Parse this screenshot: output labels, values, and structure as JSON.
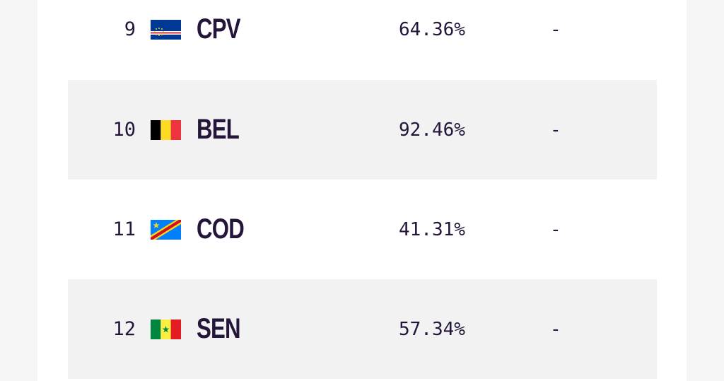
{
  "rows": [
    {
      "rank": "9",
      "code": "CPV",
      "flag_icon": "cape-verde-flag-icon",
      "percentage": "64.36%",
      "change": "-"
    },
    {
      "rank": "10",
      "code": "BEL",
      "flag_icon": "belgium-flag-icon",
      "percentage": "92.46%",
      "change": "-"
    },
    {
      "rank": "11",
      "code": "COD",
      "flag_icon": "dr-congo-flag-icon",
      "percentage": "41.31%",
      "change": "-"
    },
    {
      "rank": "12",
      "code": "SEN",
      "flag_icon": "senegal-flag-icon",
      "percentage": "57.34%",
      "change": "-"
    }
  ],
  "colors": {
    "text": "#24163a",
    "row_alt_background": "#f2f2f2",
    "page_background": "#f5f5f5",
    "card_background": "#ffffff"
  }
}
